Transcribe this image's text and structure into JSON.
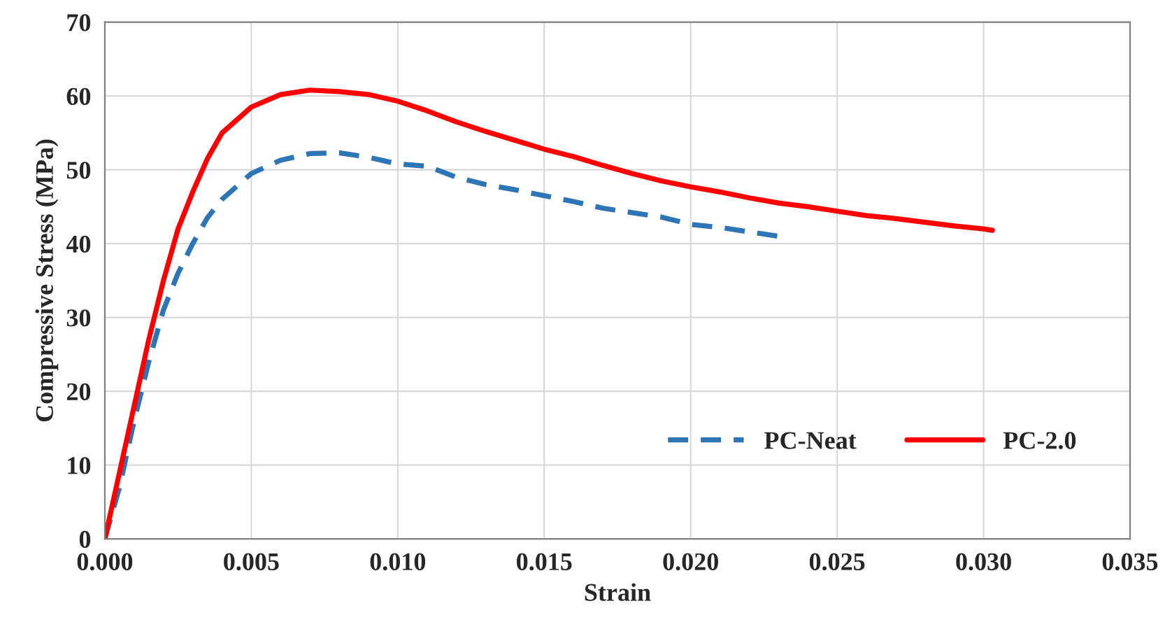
{
  "chart_data": {
    "type": "line",
    "xlabel": "Strain",
    "ylabel": "Compressive Stress (MPa)",
    "xlim": [
      0,
      0.035
    ],
    "xticks": [
      {
        "value": 0,
        "label": "0.000"
      },
      {
        "value": 0.005,
        "label": "0.005"
      },
      {
        "value": 0.01,
        "label": "0.010"
      },
      {
        "value": 0.015,
        "label": "0.015"
      },
      {
        "value": 0.02,
        "label": "0.020"
      },
      {
        "value": 0.025,
        "label": "0.025"
      },
      {
        "value": 0.03,
        "label": "0.030"
      },
      {
        "value": 0.035,
        "label": "0.035"
      }
    ],
    "ylim": [
      0,
      70
    ],
    "yticks": [
      0,
      10,
      20,
      30,
      40,
      50,
      60,
      70
    ],
    "grid": true,
    "legend": "bottom right",
    "series": [
      {
        "name": "PC-Neat",
        "color": "#2e75b6",
        "line_style": "dashed",
        "x": [
          0,
          0.0005,
          0.001,
          0.0015,
          0.002,
          0.0025,
          0.003,
          0.0035,
          0.004,
          0.005,
          0.006,
          0.007,
          0.008,
          0.009,
          0.01,
          0.011,
          0.012,
          0.013,
          0.014,
          0.015,
          0.016,
          0.017,
          0.018,
          0.019,
          0.02,
          0.021,
          0.022,
          0.023
        ],
        "values": [
          0,
          7,
          16,
          24,
          31,
          36,
          40,
          43.5,
          46,
          49.5,
          51.3,
          52.2,
          52.3,
          51.7,
          50.8,
          50.5,
          49,
          48,
          47.3,
          46.5,
          45.7,
          44.8,
          44.2,
          43.6,
          42.6,
          42.2,
          41.6,
          41
        ]
      },
      {
        "name": "PC-2.0",
        "color": "#ff0000",
        "line_style": "solid",
        "x": [
          0,
          0.0005,
          0.001,
          0.0015,
          0.002,
          0.0025,
          0.003,
          0.0035,
          0.004,
          0.005,
          0.006,
          0.007,
          0.008,
          0.009,
          0.01,
          0.011,
          0.012,
          0.013,
          0.014,
          0.015,
          0.016,
          0.017,
          0.018,
          0.019,
          0.02,
          0.021,
          0.022,
          0.023,
          0.024,
          0.025,
          0.026,
          0.027,
          0.028,
          0.029,
          0.03,
          0.0303
        ],
        "values": [
          0,
          9,
          18,
          27,
          35,
          42,
          47,
          51.5,
          55,
          58.5,
          60.2,
          60.8,
          60.6,
          60.2,
          59.3,
          58,
          56.5,
          55.2,
          54,
          52.8,
          51.8,
          50.6,
          49.5,
          48.5,
          47.7,
          47,
          46.2,
          45.5,
          45,
          44.4,
          43.8,
          43.4,
          42.9,
          42.4,
          42,
          41.8
        ]
      }
    ]
  }
}
